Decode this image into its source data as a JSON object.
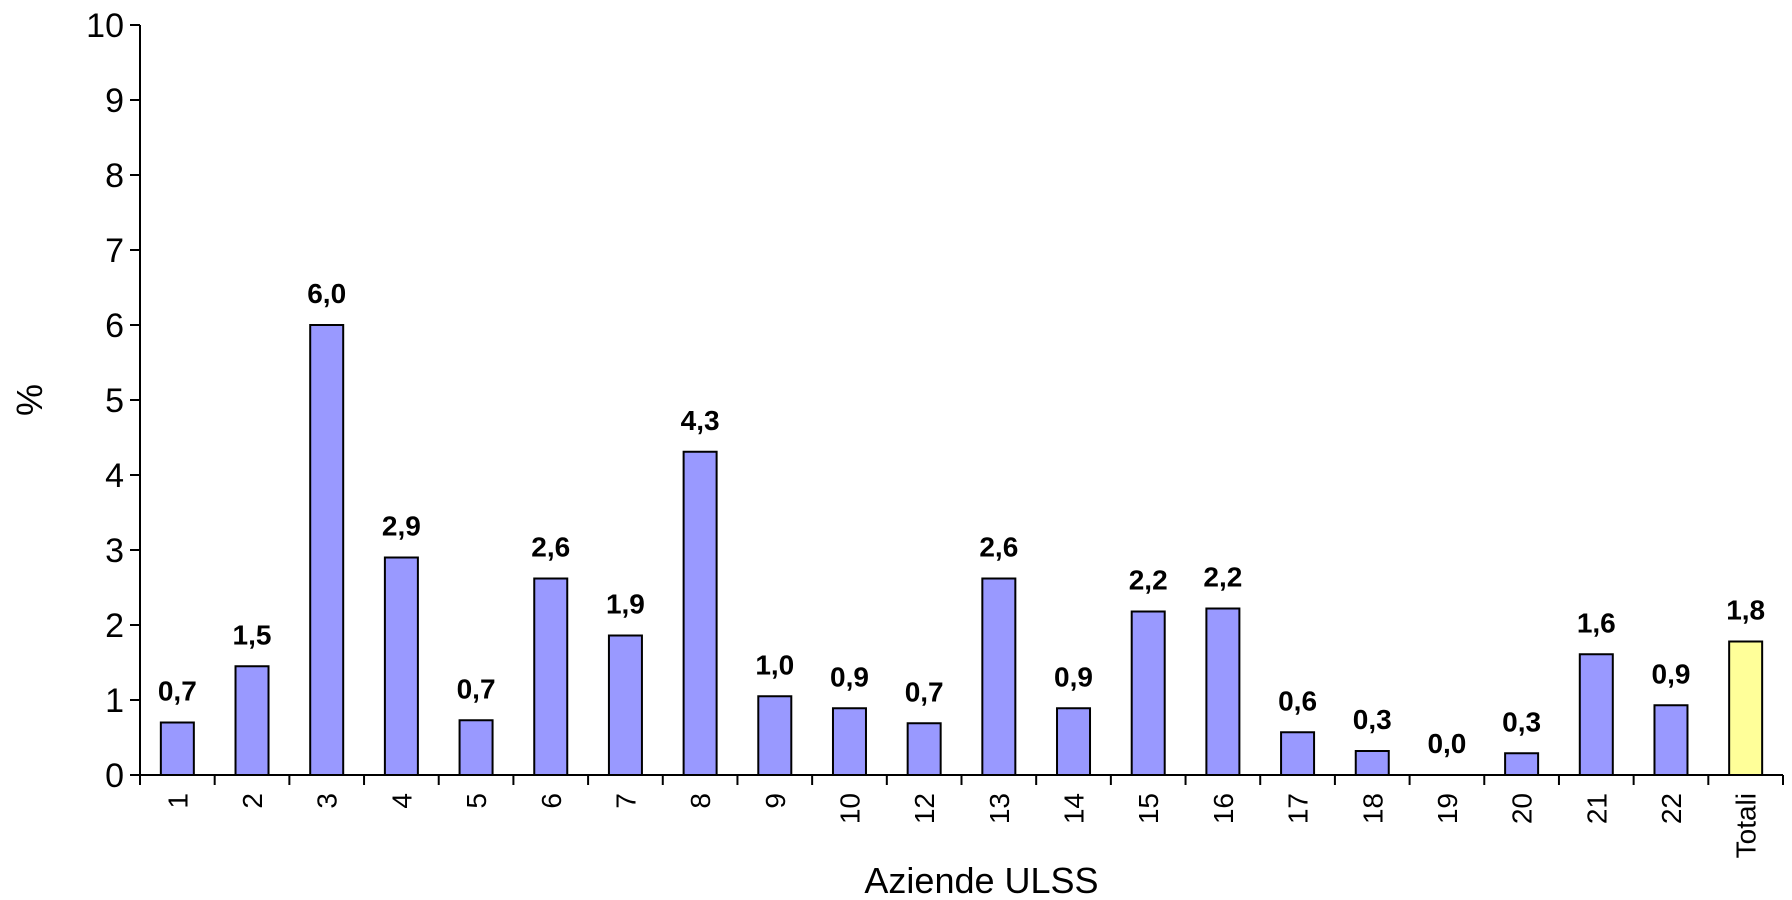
{
  "chart_data": {
    "type": "bar",
    "title": "",
    "xlabel": "Aziende ULSS",
    "ylabel": "%",
    "ylim": [
      0,
      10
    ],
    "yticks": [
      0,
      1,
      2,
      3,
      4,
      5,
      6,
      7,
      8,
      9,
      10
    ],
    "grid": false,
    "categories": [
      "1",
      "2",
      "3",
      "4",
      "5",
      "6",
      "7",
      "8",
      "9",
      "10",
      "12",
      "13",
      "14",
      "15",
      "16",
      "17",
      "18",
      "19",
      "20",
      "21",
      "22",
      "Totali"
    ],
    "values": [
      0.7,
      1.45,
      6.0,
      2.9,
      0.73,
      2.62,
      1.86,
      4.31,
      1.05,
      0.89,
      0.69,
      2.62,
      0.89,
      2.18,
      2.22,
      0.57,
      0.32,
      0.0,
      0.29,
      1.61,
      0.93,
      1.78
    ],
    "data_labels": [
      "0,7",
      "1,5",
      "6,0",
      "2,9",
      "0,7",
      "2,6",
      "1,9",
      "4,3",
      "1,0",
      "0,9",
      "0,7",
      "2,6",
      "0,9",
      "2,2",
      "2,2",
      "0,6",
      "0,3",
      "0,0",
      "0,3",
      "1,6",
      "0,9",
      "1,8"
    ],
    "colors": {
      "bar": "#9999ff",
      "total_bar": "#ffff99",
      "bar_stroke": "#000000",
      "axis": "#000000"
    }
  }
}
